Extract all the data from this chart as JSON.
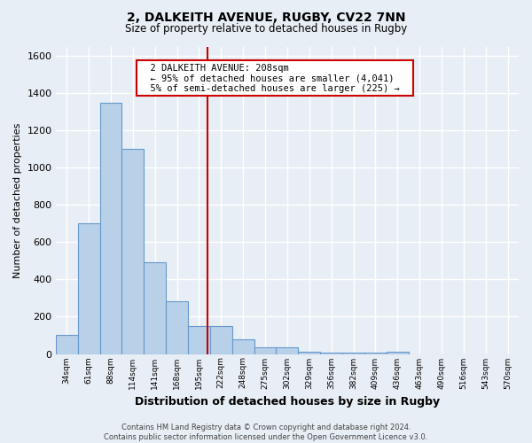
{
  "title1": "2, DALKEITH AVENUE, RUGBY, CV22 7NN",
  "title2": "Size of property relative to detached houses in Rugby",
  "xlabel": "Distribution of detached houses by size in Rugby",
  "ylabel": "Number of detached properties",
  "categories": [
    "34sqm",
    "61sqm",
    "88sqm",
    "114sqm",
    "141sqm",
    "168sqm",
    "195sqm",
    "222sqm",
    "248sqm",
    "275sqm",
    "302sqm",
    "329sqm",
    "356sqm",
    "382sqm",
    "409sqm",
    "436sqm",
    "463sqm",
    "490sqm",
    "516sqm",
    "543sqm",
    "570sqm"
  ],
  "values": [
    100,
    700,
    1350,
    1100,
    490,
    285,
    150,
    150,
    80,
    35,
    35,
    10,
    5,
    5,
    5,
    10,
    0,
    0,
    0,
    0,
    0
  ],
  "bar_color": "#b8d0e8",
  "bar_edge_color": "#6699cc",
  "red_line_index": 6.4,
  "annotation_text": "  2 DALKEITH AVENUE: 208sqm  \n  ← 95% of detached houses are smaller (4,041)  \n  5% of semi-detached houses are larger (225) →  ",
  "annotation_box_color": "#ffffff",
  "annotation_box_edge": "#cc0000",
  "ylim": [
    0,
    1650
  ],
  "yticks": [
    0,
    200,
    400,
    600,
    800,
    1000,
    1200,
    1400,
    1600
  ],
  "background_color": "#e8eef5",
  "grid_color": "#ffffff",
  "footer": "Contains HM Land Registry data © Crown copyright and database right 2024.\nContains public sector information licensed under the Open Government Licence v3.0."
}
